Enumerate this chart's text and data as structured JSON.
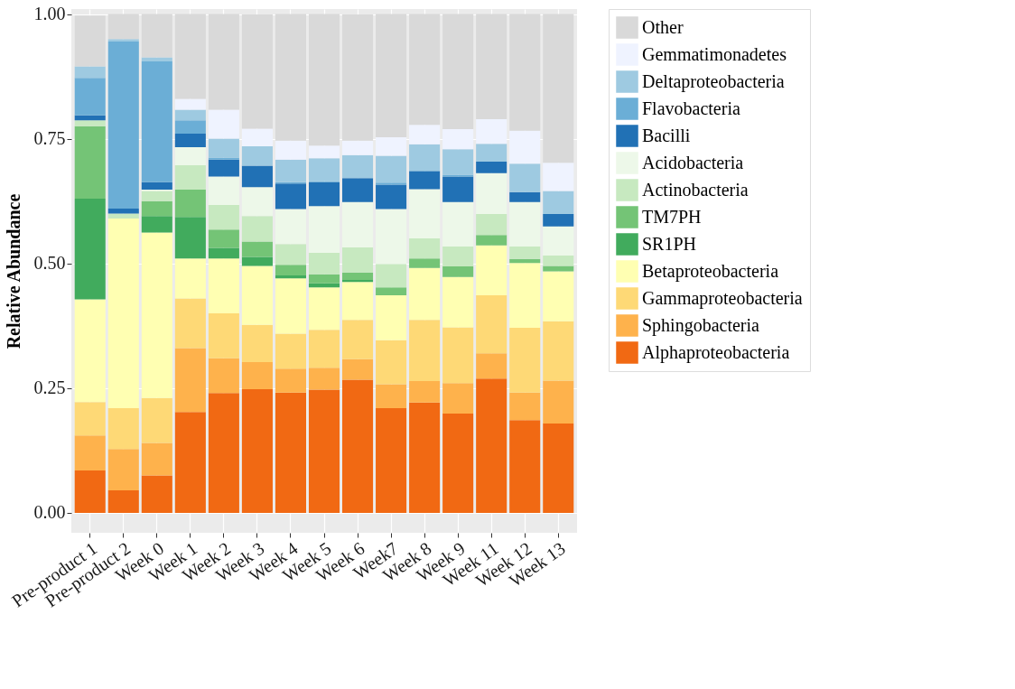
{
  "chart_data": {
    "type": "bar",
    "stacked": true,
    "ylabel": "Relative Abundance",
    "categories": [
      "Pre-product 1",
      "Pre-product 2",
      "Week 0",
      "Week 1",
      "Week 2",
      "Week 3",
      "Week 4",
      "Week 5",
      "Week 6",
      "Week7",
      "Week 8",
      "Week 9",
      "Week 11",
      "Week 12",
      "Week 13"
    ],
    "ylim": [
      -0.04,
      1.01
    ],
    "yticks": [
      {
        "value": 0,
        "label": "0.00"
      },
      {
        "value": 0.25,
        "label": "0.25"
      },
      {
        "value": 0.5,
        "label": "0.50"
      },
      {
        "value": 0.75,
        "label": "0.75"
      },
      {
        "value": 1,
        "label": "1.00"
      }
    ],
    "grid": true,
    "legend": "right",
    "series": [
      {
        "name": "Alphaproteobacteria",
        "color": "#f16913",
        "values": [
          0.085,
          0.045,
          0.075,
          0.202,
          0.24,
          0.248,
          0.241,
          0.247,
          0.267,
          0.21,
          0.221,
          0.199,
          0.269,
          0.186,
          0.179
        ]
      },
      {
        "name": "Sphingobacteria",
        "color": "#feb24c",
        "values": [
          0.07,
          0.083,
          0.065,
          0.128,
          0.07,
          0.054,
          0.048,
          0.044,
          0.041,
          0.048,
          0.043,
          0.061,
          0.051,
          0.055,
          0.086
        ]
      },
      {
        "name": "Gammaproteobacteria",
        "color": "#fed976",
        "values": [
          0.067,
          0.082,
          0.09,
          0.1,
          0.09,
          0.075,
          0.07,
          0.076,
          0.079,
          0.088,
          0.123,
          0.112,
          0.116,
          0.13,
          0.119
        ]
      },
      {
        "name": "Betaproteobacteria",
        "color": "#ffffb2",
        "values": [
          0.206,
          0.38,
          0.332,
          0.08,
          0.11,
          0.118,
          0.111,
          0.085,
          0.076,
          0.09,
          0.104,
          0.101,
          0.1,
          0.13,
          0.1
        ]
      },
      {
        "name": "SR1PH",
        "color": "#41ab5d",
        "values": [
          0.202,
          0,
          0.033,
          0.083,
          0.021,
          0.018,
          0.006,
          0.008,
          0.004,
          0,
          0,
          0,
          0,
          0,
          0
        ]
      },
      {
        "name": "TM7PH",
        "color": "#74c476",
        "values": [
          0.145,
          0,
          0.03,
          0.055,
          0.037,
          0.031,
          0.021,
          0.018,
          0.015,
          0.016,
          0.019,
          0.021,
          0.021,
          0.008,
          0.011
        ]
      },
      {
        "name": "Actinobacteria",
        "color": "#c7e9c0",
        "values": [
          0.012,
          0.01,
          0.02,
          0.049,
          0.049,
          0.051,
          0.042,
          0.043,
          0.05,
          0.047,
          0.04,
          0.04,
          0.042,
          0.025,
          0.021
        ]
      },
      {
        "name": "Acidobacteria",
        "color": "#edf8e9",
        "values": [
          null,
          0,
          0.003,
          0.036,
          0.057,
          0.058,
          0.07,
          0.094,
          0.091,
          0.11,
          0.099,
          0.089,
          0.082,
          0.089,
          0.058
        ]
      },
      {
        "name": "Bacilli",
        "color": "#2171b5",
        "values": [
          0.01,
          0.01,
          0.015,
          0.027,
          0.034,
          0.043,
          0.051,
          0.048,
          0.048,
          0.049,
          0.036,
          0.051,
          0.023,
          0.02,
          0.025
        ]
      },
      {
        "name": "Flavobacteria",
        "color": "#6baed6",
        "values": [
          0.075,
          0.335,
          0.242,
          0.027,
          0.004,
          null,
          0.003,
          0.002,
          null,
          0.004,
          0.001,
          0.004,
          0,
          0,
          0
        ]
      },
      {
        "name": "Deltaproteobacteria",
        "color": "#9ecae1",
        "values": [
          0.023,
          0.005,
          0.008,
          0.021,
          0.038,
          0.039,
          0.045,
          0.046,
          0.046,
          0.054,
          0.053,
          0.051,
          0.036,
          0.057,
          0.046
        ]
      },
      {
        "name": "Gemmatimonadetes",
        "color": "#eff3ff",
        "values": [
          0,
          0,
          0,
          0.022,
          0.058,
          0.035,
          0.038,
          0.025,
          0.029,
          0.037,
          0.039,
          0.04,
          0.049,
          0.066,
          0.057
        ]
      },
      {
        "name": "Other",
        "color": "#d9d9d9",
        "values": [
          0.102,
          0.05,
          0.087,
          0.17,
          0.192,
          0.229,
          0.254,
          0.264,
          0.253,
          0.247,
          0.222,
          0.231,
          0.211,
          0.234,
          0.298
        ]
      }
    ]
  }
}
